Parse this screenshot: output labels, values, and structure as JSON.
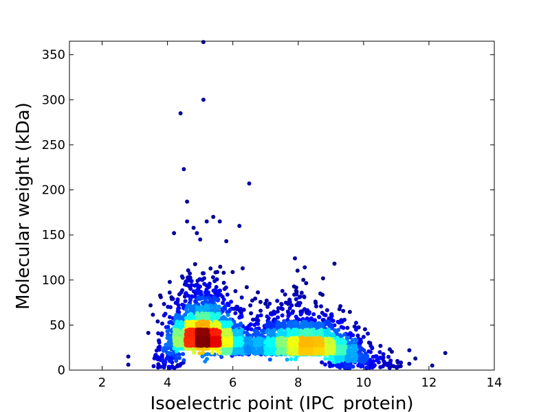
{
  "chart_data": {
    "type": "scatter",
    "title": "",
    "xlabel": "Isoelectric point (IPC_protein)",
    "ylabel": "Molecular weight (kDa)",
    "xlim": [
      1,
      14
    ],
    "ylim": [
      0,
      365
    ],
    "xticks": [
      2,
      4,
      6,
      8,
      10,
      12,
      14
    ],
    "yticks": [
      0,
      50,
      100,
      150,
      200,
      250,
      300,
      350
    ],
    "grid": false,
    "legend": "none",
    "color_scale": "point density (jet colormap: dark blue = low, dark red = high)",
    "density_peaks": [
      {
        "x": 5.1,
        "y": 30,
        "level": "highest"
      },
      {
        "x": 8.4,
        "y": 22,
        "level": "high"
      }
    ],
    "outliers": [
      {
        "x": 5.1,
        "y": 364
      },
      {
        "x": 5.1,
        "y": 300
      },
      {
        "x": 4.4,
        "y": 285
      },
      {
        "x": 4.5,
        "y": 223
      },
      {
        "x": 6.5,
        "y": 207
      },
      {
        "x": 4.6,
        "y": 187
      },
      {
        "x": 5.4,
        "y": 170
      },
      {
        "x": 5.6,
        "y": 165
      },
      {
        "x": 4.6,
        "y": 165
      },
      {
        "x": 5.2,
        "y": 165
      },
      {
        "x": 4.8,
        "y": 158
      },
      {
        "x": 6.2,
        "y": 160
      },
      {
        "x": 4.2,
        "y": 152
      },
      {
        "x": 4.9,
        "y": 152
      },
      {
        "x": 5.0,
        "y": 145
      },
      {
        "x": 5.8,
        "y": 143
      },
      {
        "x": 7.9,
        "y": 124
      },
      {
        "x": 8.2,
        "y": 114
      },
      {
        "x": 6.3,
        "y": 113
      },
      {
        "x": 12.5,
        "y": 19
      },
      {
        "x": 12.1,
        "y": 5
      },
      {
        "x": 11.4,
        "y": 22
      },
      {
        "x": 11.4,
        "y": 7
      },
      {
        "x": 10.8,
        "y": 23
      },
      {
        "x": 10.2,
        "y": 30
      },
      {
        "x": 2.8,
        "y": 15
      },
      {
        "x": 2.8,
        "y": 6
      },
      {
        "x": 3.7,
        "y": 54
      }
    ]
  }
}
